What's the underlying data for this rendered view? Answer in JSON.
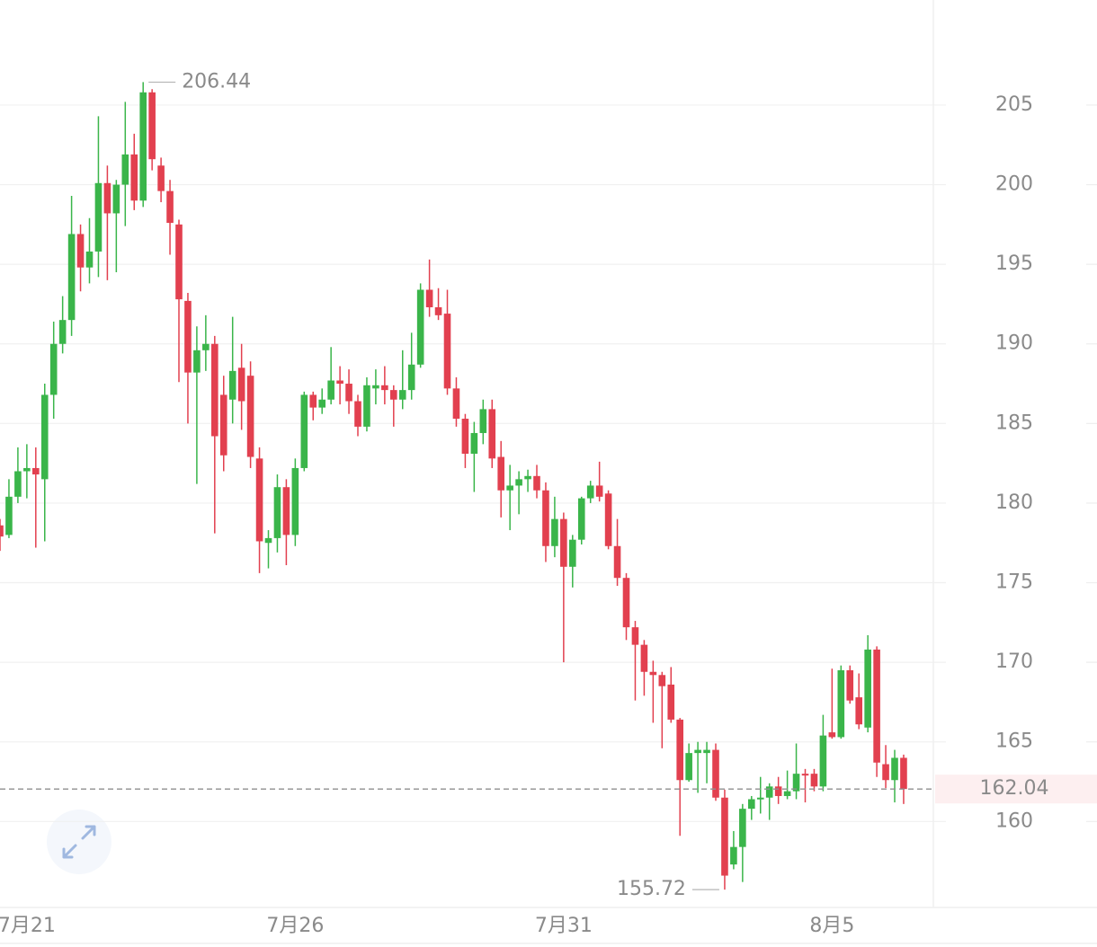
{
  "chart_data": {
    "type": "candlestick",
    "categories": [
      null,
      null,
      null,
      "7月21",
      null,
      null,
      null,
      null,
      null,
      null,
      null,
      null,
      null,
      null,
      null,
      null,
      null,
      null,
      null,
      null,
      null,
      null,
      null,
      null,
      null,
      null,
      null,
      null,
      null,
      null,
      null,
      null,
      null,
      "7月26",
      null,
      null,
      null,
      null,
      null,
      null,
      null,
      null,
      null,
      null,
      null,
      null,
      null,
      null,
      null,
      null,
      null,
      null,
      null,
      null,
      null,
      null,
      null,
      null,
      null,
      null,
      null,
      null,
      null,
      "7月31",
      null,
      null,
      null,
      null,
      null,
      null,
      null,
      null,
      null,
      null,
      null,
      null,
      null,
      null,
      null,
      null,
      null,
      null,
      null,
      null,
      null,
      null,
      null,
      null,
      null,
      null,
      null,
      null,
      null,
      "8月5",
      null,
      null,
      null,
      null,
      null,
      null,
      null,
      null
    ],
    "open": [
      178.6,
      178.0,
      180.4,
      182.0,
      182.2,
      181.5,
      186.8,
      190.0,
      191.5,
      196.9,
      194.8,
      195.8,
      200.1,
      198.2,
      200.0,
      201.9,
      199.0,
      205.8,
      201.2,
      199.6,
      197.5,
      192.7,
      188.2,
      189.6,
      190.0,
      186.8,
      186.5,
      188.5,
      188.0,
      182.8,
      177.5,
      177.8,
      181.0,
      178.0,
      182.2,
      186.8,
      186.0,
      186.5,
      187.7,
      187.5,
      186.4,
      184.8,
      187.2,
      187.4,
      187.1,
      186.5,
      187.1,
      188.7,
      193.4,
      192.3,
      191.9,
      187.2,
      185.3,
      183.1,
      184.4,
      185.9,
      182.9,
      180.8,
      181.1,
      181.5,
      181.7,
      180.8,
      177.3,
      179.0,
      176.0,
      177.7,
      180.3,
      181.1,
      180.6,
      177.3,
      175.3,
      172.2,
      171.1,
      169.4,
      169.2,
      168.6,
      166.4,
      162.6,
      164.3,
      164.3,
      164.5,
      161.5,
      157.3,
      158.4,
      160.8,
      161.4,
      161.5,
      162.2,
      161.6,
      161.9,
      163.0,
      163.0,
      162.2,
      165.6,
      165.3,
      169.5,
      167.8,
      165.9,
      170.8,
      163.6,
      162.6,
      164.0
    ],
    "high": [
      179.0,
      181.5,
      183.5,
      183.7,
      183.5,
      187.5,
      191.4,
      193.0,
      199.3,
      197.5,
      197.9,
      204.3,
      201.2,
      200.3,
      205.2,
      203.2,
      206.44,
      206.0,
      201.7,
      200.3,
      197.8,
      193.2,
      191.1,
      191.8,
      190.5,
      188.0,
      191.7,
      190.0,
      188.9,
      183.5,
      178.3,
      181.8,
      181.5,
      182.8,
      187.0,
      187.0,
      187.2,
      189.8,
      188.6,
      188.4,
      186.8,
      187.9,
      188.4,
      188.6,
      187.4,
      189.6,
      190.7,
      193.8,
      195.3,
      193.5,
      193.4,
      187.9,
      185.6,
      185.1,
      186.5,
      186.5,
      183.9,
      182.4,
      182.0,
      182.1,
      182.4,
      181.3,
      180.4,
      179.4,
      178.0,
      180.4,
      181.4,
      182.6,
      180.8,
      179.0,
      175.6,
      172.6,
      171.4,
      170.1,
      169.4,
      169.7,
      166.5,
      164.9,
      165.0,
      165.0,
      164.9,
      162.0,
      159.4,
      161.1,
      161.6,
      162.8,
      162.4,
      162.8,
      163.2,
      164.9,
      163.3,
      163.3,
      166.7,
      169.6,
      169.8,
      169.8,
      169.3,
      171.7,
      171.0,
      164.8,
      164.5,
      164.2
    ],
    "low": [
      177.0,
      177.8,
      180.0,
      180.3,
      177.2,
      177.6,
      185.3,
      189.4,
      190.5,
      193.3,
      193.8,
      194.2,
      194.0,
      194.5,
      197.4,
      198.4,
      198.6,
      200.9,
      198.9,
      195.6,
      187.6,
      185.0,
      181.2,
      188.3,
      178.1,
      182.0,
      185.0,
      184.6,
      182.2,
      175.6,
      175.9,
      176.9,
      176.1,
      177.3,
      182.0,
      185.2,
      185.6,
      186.2,
      186.2,
      185.6,
      184.2,
      184.5,
      186.2,
      186.2,
      184.8,
      185.9,
      186.5,
      188.5,
      191.7,
      191.5,
      186.8,
      184.8,
      182.2,
      180.7,
      183.7,
      182.2,
      179.1,
      178.3,
      179.3,
      180.7,
      180.3,
      176.3,
      176.6,
      170.0,
      174.7,
      177.4,
      180.0,
      180.1,
      177.1,
      174.8,
      171.4,
      167.6,
      167.9,
      166.2,
      164.6,
      166.2,
      159.1,
      162.5,
      161.8,
      162.4,
      161.3,
      155.72,
      157.0,
      156.2,
      160.1,
      160.5,
      160.1,
      161.1,
      161.4,
      161.4,
      161.2,
      161.9,
      161.9,
      165.2,
      165.2,
      167.4,
      165.8,
      165.6,
      162.8,
      162.1,
      161.2,
      161.1
    ],
    "close": [
      177.9,
      180.4,
      182.0,
      182.2,
      181.8,
      186.8,
      190.0,
      191.5,
      196.9,
      194.8,
      195.8,
      200.1,
      198.2,
      200.0,
      201.9,
      199.0,
      205.8,
      201.6,
      199.6,
      197.6,
      192.8,
      188.2,
      189.6,
      190.0,
      184.2,
      183.0,
      188.3,
      186.4,
      182.9,
      177.6,
      177.8,
      181.0,
      178.0,
      182.2,
      186.8,
      186.0,
      186.5,
      187.7,
      187.5,
      186.4,
      184.8,
      187.4,
      187.4,
      187.1,
      186.5,
      187.1,
      188.7,
      193.4,
      192.3,
      191.8,
      187.2,
      185.3,
      183.1,
      184.4,
      185.9,
      182.8,
      180.8,
      181.1,
      181.5,
      181.7,
      180.8,
      177.3,
      179.0,
      176.0,
      177.7,
      180.3,
      181.1,
      180.4,
      177.3,
      175.3,
      172.2,
      171.1,
      169.4,
      169.2,
      168.5,
      166.4,
      162.6,
      164.3,
      164.5,
      164.5,
      161.5,
      156.6,
      158.4,
      160.8,
      161.4,
      161.5,
      162.2,
      161.6,
      161.9,
      163.0,
      162.9,
      162.2,
      165.4,
      165.3,
      169.5,
      167.6,
      166.1,
      170.8,
      163.7,
      162.6,
      164.0,
      162.04
    ],
    "up_color": "#3ab54a",
    "down_color": "#e2404f",
    "ylim": [
      154.6,
      211.6
    ],
    "yticks": [
      160,
      165,
      170,
      175,
      180,
      185,
      190,
      195,
      200,
      205
    ],
    "grid": true
  }
}
